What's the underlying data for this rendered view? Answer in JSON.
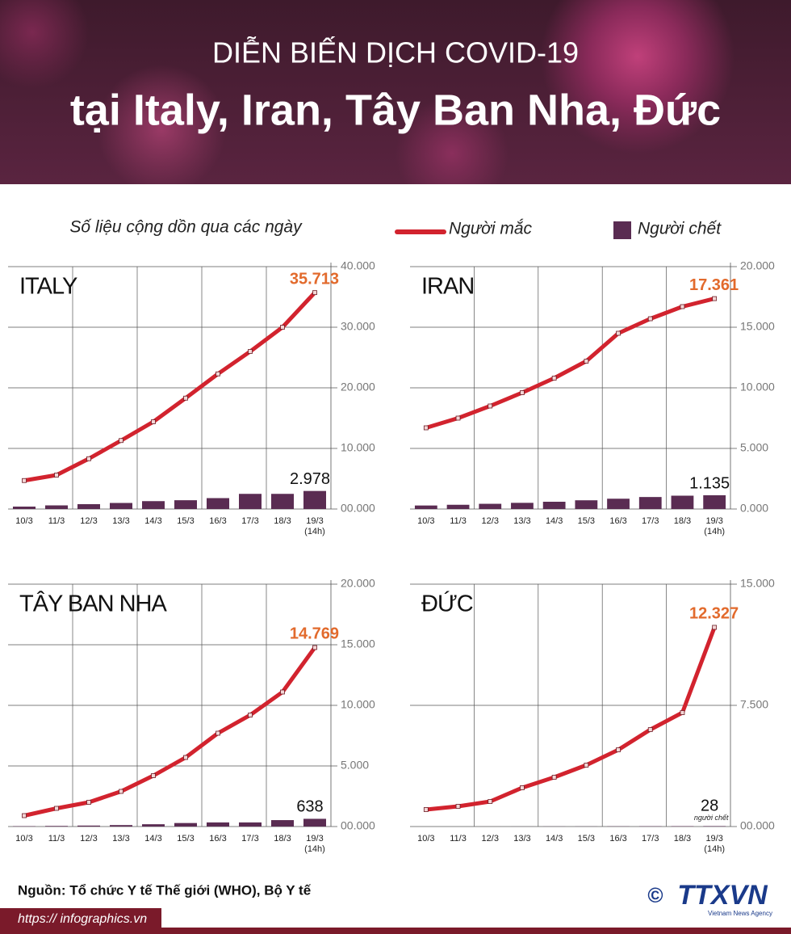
{
  "header": {
    "title_line1": "DIỄN BIẾN DỊCH COVID-19",
    "title_line2": "tại Italy, Iran, Tây Ban Nha, Đức",
    "subtitle": "Số liệu cộng dồn qua các ngày"
  },
  "footer": {
    "source": "Nguồn: Tổ chức Y tế Thế giới (WHO), Bộ Y tế",
    "url": "https:// infographics.vn",
    "copyright": "©",
    "logo": "TTXVN",
    "logo_sub": "Vietnam News Agency"
  },
  "chart_data": [
    {
      "type": "combo",
      "title": "ITALY",
      "categories": [
        "10/3",
        "11/3",
        "12/3",
        "13/3",
        "14/3",
        "15/3",
        "16/3",
        "17/3",
        "18/3",
        "19/3"
      ],
      "last_category_note": "(14h)",
      "ylim": [
        0,
        40000
      ],
      "yticks": [
        {
          "value": 0,
          "label": "00.000"
        },
        {
          "value": 10000,
          "label": "10.000"
        },
        {
          "value": 20000,
          "label": "20.000"
        },
        {
          "value": 30000,
          "label": "30.000"
        },
        {
          "value": 40000,
          "label": "40.000"
        }
      ],
      "grid": true,
      "series": [
        {
          "name": "Người mắc",
          "kind": "line",
          "color": "#d2232e",
          "values": [
            4700,
            5600,
            8300,
            11300,
            14400,
            18300,
            22300,
            26000,
            30000,
            35713
          ],
          "value_labels": [
            null,
            null,
            null,
            null,
            null,
            null,
            null,
            null,
            null,
            "35.713"
          ],
          "label_color": "#e26a2c"
        },
        {
          "name": "Người chết",
          "kind": "bar",
          "color": "#5a2c52",
          "values": [
            400,
            600,
            800,
            1000,
            1300,
            1450,
            1800,
            2500,
            2500,
            2978
          ],
          "value_labels": [
            null,
            null,
            null,
            null,
            null,
            null,
            null,
            null,
            null,
            "2.978"
          ],
          "label_color": "#111111"
        }
      ]
    },
    {
      "type": "combo",
      "title": "IRAN",
      "categories": [
        "10/3",
        "11/3",
        "12/3",
        "13/3",
        "14/3",
        "15/3",
        "16/3",
        "17/3",
        "18/3",
        "19/3"
      ],
      "last_category_note": "(14h)",
      "ylim": [
        0,
        20000
      ],
      "yticks": [
        {
          "value": 0,
          "label": "0.000"
        },
        {
          "value": 5000,
          "label": "5.000"
        },
        {
          "value": 10000,
          "label": "10.000"
        },
        {
          "value": 15000,
          "label": "15.000"
        },
        {
          "value": 20000,
          "label": "20.000"
        }
      ],
      "grid": true,
      "series": [
        {
          "name": "Người mắc",
          "kind": "line",
          "color": "#d2232e",
          "values": [
            6700,
            7500,
            8500,
            9600,
            10800,
            12200,
            14500,
            15700,
            16700,
            17361
          ],
          "value_labels": [
            null,
            null,
            null,
            null,
            null,
            null,
            null,
            null,
            null,
            "17.361"
          ],
          "label_color": "#e26a2c"
        },
        {
          "name": "Người chết",
          "kind": "bar",
          "color": "#5a2c52",
          "values": [
            290,
            350,
            430,
            510,
            600,
            720,
            850,
            990,
            1100,
            1135
          ],
          "value_labels": [
            null,
            null,
            null,
            null,
            null,
            null,
            null,
            null,
            null,
            "1.135"
          ],
          "label_color": "#111111"
        }
      ]
    },
    {
      "type": "combo",
      "title": "TÂY BAN NHA",
      "categories": [
        "10/3",
        "11/3",
        "12/3",
        "13/3",
        "14/3",
        "15/3",
        "16/3",
        "17/3",
        "18/3",
        "19/3"
      ],
      "last_category_note": "(14h)",
      "ylim": [
        0,
        20000
      ],
      "yticks": [
        {
          "value": 0,
          "label": "00.000"
        },
        {
          "value": 5000,
          "label": "5.000"
        },
        {
          "value": 10000,
          "label": "10.000"
        },
        {
          "value": 15000,
          "label": "15.000"
        },
        {
          "value": 20000,
          "label": "20.000"
        }
      ],
      "grid": true,
      "series": [
        {
          "name": "Người mắc",
          "kind": "line",
          "color": "#d2232e",
          "values": [
            900,
            1500,
            2000,
            2900,
            4200,
            5700,
            7700,
            9200,
            11100,
            14769
          ],
          "value_labels": [
            null,
            null,
            null,
            null,
            null,
            null,
            null,
            null,
            null,
            "14.769"
          ],
          "label_color": "#e26a2c"
        },
        {
          "name": "Người chết",
          "kind": "bar",
          "color": "#5a2c52",
          "values": [
            30,
            50,
            80,
            120,
            190,
            290,
            340,
            340,
            530,
            638
          ],
          "value_labels": [
            null,
            null,
            null,
            null,
            null,
            null,
            null,
            null,
            null,
            "638"
          ],
          "label_color": "#111111"
        }
      ]
    },
    {
      "type": "combo",
      "title": "ĐỨC",
      "categories": [
        "10/3",
        "11/3",
        "12/3",
        "13/3",
        "14/3",
        "15/3",
        "16/3",
        "17/3",
        "18/3",
        "19/3"
      ],
      "last_category_note": "(14h)",
      "ylim": [
        0,
        15000
      ],
      "yticks": [
        {
          "value": 0,
          "label": "00.000"
        },
        {
          "value": 7500,
          "label": "7.500"
        },
        {
          "value": 15000,
          "label": "15.000"
        }
      ],
      "grid": true,
      "series": [
        {
          "name": "Người mắc",
          "kind": "line",
          "color": "#d2232e",
          "values": [
            1050,
            1250,
            1550,
            2400,
            3050,
            3800,
            4750,
            6000,
            7050,
            12327
          ],
          "value_labels": [
            null,
            null,
            null,
            null,
            null,
            null,
            null,
            null,
            null,
            "12.327"
          ],
          "label_color": "#e26a2c"
        },
        {
          "name": "Người chết",
          "kind": "bar",
          "color": "#5a2c52",
          "values": [
            0,
            0,
            2,
            3,
            6,
            8,
            12,
            17,
            24,
            28
          ],
          "value_labels": [
            null,
            null,
            null,
            null,
            null,
            null,
            null,
            null,
            null,
            "28"
          ],
          "label_color": "#111111",
          "value_note": "người chết"
        }
      ]
    }
  ]
}
